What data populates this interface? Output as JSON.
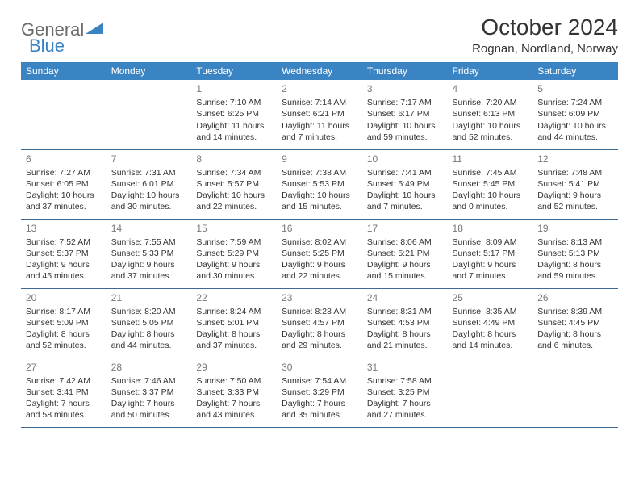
{
  "logo": {
    "text1": "General",
    "text2": "Blue"
  },
  "title": "October 2024",
  "location": "Rognan, Nordland, Norway",
  "colors": {
    "header_bg": "#3b84c4",
    "header_text": "#ffffff",
    "row_border": "#3b6a94",
    "text": "#333333",
    "daynum": "#777777",
    "logo_gray": "#6b6b6b",
    "logo_blue": "#3b84c4"
  },
  "weekdays": [
    "Sunday",
    "Monday",
    "Tuesday",
    "Wednesday",
    "Thursday",
    "Friday",
    "Saturday"
  ],
  "weeks": [
    [
      {
        "day": "",
        "sunrise": "",
        "sunset": "",
        "daylight": ""
      },
      {
        "day": "",
        "sunrise": "",
        "sunset": "",
        "daylight": ""
      },
      {
        "day": "1",
        "sunrise": "Sunrise: 7:10 AM",
        "sunset": "Sunset: 6:25 PM",
        "daylight": "Daylight: 11 hours and 14 minutes."
      },
      {
        "day": "2",
        "sunrise": "Sunrise: 7:14 AM",
        "sunset": "Sunset: 6:21 PM",
        "daylight": "Daylight: 11 hours and 7 minutes."
      },
      {
        "day": "3",
        "sunrise": "Sunrise: 7:17 AM",
        "sunset": "Sunset: 6:17 PM",
        "daylight": "Daylight: 10 hours and 59 minutes."
      },
      {
        "day": "4",
        "sunrise": "Sunrise: 7:20 AM",
        "sunset": "Sunset: 6:13 PM",
        "daylight": "Daylight: 10 hours and 52 minutes."
      },
      {
        "day": "5",
        "sunrise": "Sunrise: 7:24 AM",
        "sunset": "Sunset: 6:09 PM",
        "daylight": "Daylight: 10 hours and 44 minutes."
      }
    ],
    [
      {
        "day": "6",
        "sunrise": "Sunrise: 7:27 AM",
        "sunset": "Sunset: 6:05 PM",
        "daylight": "Daylight: 10 hours and 37 minutes."
      },
      {
        "day": "7",
        "sunrise": "Sunrise: 7:31 AM",
        "sunset": "Sunset: 6:01 PM",
        "daylight": "Daylight: 10 hours and 30 minutes."
      },
      {
        "day": "8",
        "sunrise": "Sunrise: 7:34 AM",
        "sunset": "Sunset: 5:57 PM",
        "daylight": "Daylight: 10 hours and 22 minutes."
      },
      {
        "day": "9",
        "sunrise": "Sunrise: 7:38 AM",
        "sunset": "Sunset: 5:53 PM",
        "daylight": "Daylight: 10 hours and 15 minutes."
      },
      {
        "day": "10",
        "sunrise": "Sunrise: 7:41 AM",
        "sunset": "Sunset: 5:49 PM",
        "daylight": "Daylight: 10 hours and 7 minutes."
      },
      {
        "day": "11",
        "sunrise": "Sunrise: 7:45 AM",
        "sunset": "Sunset: 5:45 PM",
        "daylight": "Daylight: 10 hours and 0 minutes."
      },
      {
        "day": "12",
        "sunrise": "Sunrise: 7:48 AM",
        "sunset": "Sunset: 5:41 PM",
        "daylight": "Daylight: 9 hours and 52 minutes."
      }
    ],
    [
      {
        "day": "13",
        "sunrise": "Sunrise: 7:52 AM",
        "sunset": "Sunset: 5:37 PM",
        "daylight": "Daylight: 9 hours and 45 minutes."
      },
      {
        "day": "14",
        "sunrise": "Sunrise: 7:55 AM",
        "sunset": "Sunset: 5:33 PM",
        "daylight": "Daylight: 9 hours and 37 minutes."
      },
      {
        "day": "15",
        "sunrise": "Sunrise: 7:59 AM",
        "sunset": "Sunset: 5:29 PM",
        "daylight": "Daylight: 9 hours and 30 minutes."
      },
      {
        "day": "16",
        "sunrise": "Sunrise: 8:02 AM",
        "sunset": "Sunset: 5:25 PM",
        "daylight": "Daylight: 9 hours and 22 minutes."
      },
      {
        "day": "17",
        "sunrise": "Sunrise: 8:06 AM",
        "sunset": "Sunset: 5:21 PM",
        "daylight": "Daylight: 9 hours and 15 minutes."
      },
      {
        "day": "18",
        "sunrise": "Sunrise: 8:09 AM",
        "sunset": "Sunset: 5:17 PM",
        "daylight": "Daylight: 9 hours and 7 minutes."
      },
      {
        "day": "19",
        "sunrise": "Sunrise: 8:13 AM",
        "sunset": "Sunset: 5:13 PM",
        "daylight": "Daylight: 8 hours and 59 minutes."
      }
    ],
    [
      {
        "day": "20",
        "sunrise": "Sunrise: 8:17 AM",
        "sunset": "Sunset: 5:09 PM",
        "daylight": "Daylight: 8 hours and 52 minutes."
      },
      {
        "day": "21",
        "sunrise": "Sunrise: 8:20 AM",
        "sunset": "Sunset: 5:05 PM",
        "daylight": "Daylight: 8 hours and 44 minutes."
      },
      {
        "day": "22",
        "sunrise": "Sunrise: 8:24 AM",
        "sunset": "Sunset: 5:01 PM",
        "daylight": "Daylight: 8 hours and 37 minutes."
      },
      {
        "day": "23",
        "sunrise": "Sunrise: 8:28 AM",
        "sunset": "Sunset: 4:57 PM",
        "daylight": "Daylight: 8 hours and 29 minutes."
      },
      {
        "day": "24",
        "sunrise": "Sunrise: 8:31 AM",
        "sunset": "Sunset: 4:53 PM",
        "daylight": "Daylight: 8 hours and 21 minutes."
      },
      {
        "day": "25",
        "sunrise": "Sunrise: 8:35 AM",
        "sunset": "Sunset: 4:49 PM",
        "daylight": "Daylight: 8 hours and 14 minutes."
      },
      {
        "day": "26",
        "sunrise": "Sunrise: 8:39 AM",
        "sunset": "Sunset: 4:45 PM",
        "daylight": "Daylight: 8 hours and 6 minutes."
      }
    ],
    [
      {
        "day": "27",
        "sunrise": "Sunrise: 7:42 AM",
        "sunset": "Sunset: 3:41 PM",
        "daylight": "Daylight: 7 hours and 58 minutes."
      },
      {
        "day": "28",
        "sunrise": "Sunrise: 7:46 AM",
        "sunset": "Sunset: 3:37 PM",
        "daylight": "Daylight: 7 hours and 50 minutes."
      },
      {
        "day": "29",
        "sunrise": "Sunrise: 7:50 AM",
        "sunset": "Sunset: 3:33 PM",
        "daylight": "Daylight: 7 hours and 43 minutes."
      },
      {
        "day": "30",
        "sunrise": "Sunrise: 7:54 AM",
        "sunset": "Sunset: 3:29 PM",
        "daylight": "Daylight: 7 hours and 35 minutes."
      },
      {
        "day": "31",
        "sunrise": "Sunrise: 7:58 AM",
        "sunset": "Sunset: 3:25 PM",
        "daylight": "Daylight: 7 hours and 27 minutes."
      },
      {
        "day": "",
        "sunrise": "",
        "sunset": "",
        "daylight": ""
      },
      {
        "day": "",
        "sunrise": "",
        "sunset": "",
        "daylight": ""
      }
    ]
  ]
}
